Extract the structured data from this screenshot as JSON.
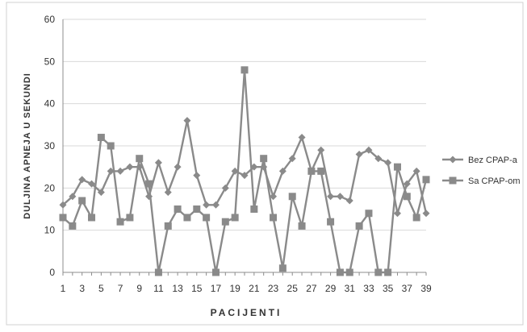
{
  "chart_data": {
    "type": "line",
    "xlabel": "PACIJENTI",
    "ylabel": "DULJINA APNEJA U SEKUNDI",
    "ylim": [
      0,
      60
    ],
    "yticks": [
      0,
      10,
      20,
      30,
      40,
      50,
      60
    ],
    "xticks": [
      1,
      3,
      5,
      7,
      9,
      11,
      13,
      15,
      17,
      19,
      21,
      23,
      25,
      27,
      29,
      31,
      33,
      35,
      37,
      39
    ],
    "x": [
      1,
      2,
      3,
      4,
      5,
      6,
      7,
      8,
      9,
      10,
      11,
      12,
      13,
      14,
      15,
      16,
      17,
      18,
      19,
      20,
      21,
      22,
      23,
      24,
      25,
      26,
      27,
      28,
      29,
      30,
      31,
      32,
      33,
      34,
      35,
      36,
      37,
      38,
      39
    ],
    "grid": "horizontal",
    "legend_position": "right",
    "series": [
      {
        "name": "Bez CPAP-a",
        "marker": "diamond",
        "color": "#8a8a8a",
        "values": [
          16,
          18,
          22,
          21,
          19,
          24,
          24,
          25,
          25,
          18,
          26,
          19,
          25,
          36,
          23,
          16,
          16,
          20,
          24,
          23,
          25,
          25,
          18,
          24,
          27,
          32,
          24,
          29,
          18,
          18,
          17,
          28,
          29,
          27,
          26,
          14,
          21,
          24,
          14
        ]
      },
      {
        "name": "Sa CPAP-om",
        "marker": "square",
        "color": "#8a8a8a",
        "values": [
          13,
          11,
          17,
          13,
          32,
          30,
          12,
          13,
          27,
          21,
          0,
          11,
          15,
          13,
          15,
          13,
          0,
          12,
          13,
          48,
          15,
          27,
          13,
          1,
          18,
          11,
          24,
          24,
          12,
          0,
          0,
          11,
          14,
          0,
          0,
          25,
          18,
          13,
          22
        ]
      }
    ]
  }
}
